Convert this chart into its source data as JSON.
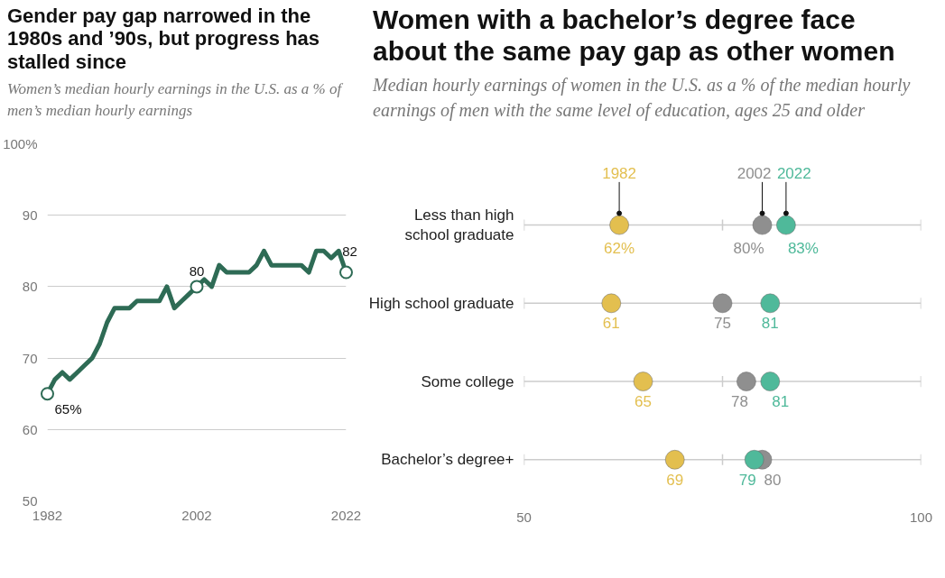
{
  "chart_data": [
    {
      "type": "line",
      "title": "Gender pay gap narrowed in the 1980s and ’90s, but progress has stalled since",
      "subtitle": "Women’s median hourly earnings in the U.S. as a % of men’s median hourly earnings",
      "x": [
        1982,
        1983,
        1984,
        1985,
        1986,
        1987,
        1988,
        1989,
        1990,
        1991,
        1992,
        1993,
        1994,
        1995,
        1996,
        1997,
        1998,
        1999,
        2000,
        2001,
        2002,
        2003,
        2004,
        2005,
        2006,
        2007,
        2008,
        2009,
        2010,
        2011,
        2012,
        2013,
        2014,
        2015,
        2016,
        2017,
        2018,
        2019,
        2020,
        2021,
        2022
      ],
      "series": [
        {
          "color": "#2e6b55",
          "values": [
            65,
            67,
            68,
            67,
            68,
            69,
            70,
            72,
            75,
            77,
            77,
            77,
            78,
            78,
            78,
            78,
            80,
            77,
            78,
            79,
            80,
            81,
            80,
            83,
            82,
            82,
            82,
            82,
            83,
            85,
            83,
            83,
            83,
            83,
            83,
            82,
            85,
            85,
            84,
            85,
            82
          ]
        }
      ],
      "xlim": [
        1982,
        2022
      ],
      "xticks": [
        1982,
        2002,
        2022
      ],
      "ylim": [
        50,
        100
      ],
      "yticks": [
        50,
        60,
        70,
        80,
        90,
        {
          "value": 100,
          "label": "100%"
        }
      ],
      "grid": "y",
      "legend": false,
      "marker": "none",
      "annotations": [
        {
          "text": "65%",
          "x": 1982,
          "y": 65
        },
        {
          "text": "80",
          "x": 2002,
          "y": 80
        },
        {
          "text": "82",
          "x": 2022,
          "y": 82
        }
      ]
    },
    {
      "type": "scatter",
      "orientation": "horizontal",
      "title": "Women with a bachelor’s degree face about the same pay gap as other women",
      "subtitle": "Median hourly earnings of women in the U.S. as a % of the median hourly earnings of men with the same level of education, ages 25 and older",
      "categories": [
        "Less than high school graduate",
        "High school graduate",
        "Some college",
        "Bachelor’s degree+"
      ],
      "series": [
        {
          "name": "1982",
          "color": "#e3bf4f",
          "values": [
            62,
            61,
            65,
            69
          ],
          "value_labels": [
            "62%",
            "61",
            "65",
            "69"
          ]
        },
        {
          "name": "2002",
          "color": "#8f8f8f",
          "values": [
            80,
            75,
            78,
            80
          ],
          "value_labels": [
            "80%",
            "75",
            "78",
            "80"
          ]
        },
        {
          "name": "2022",
          "color": "#4fb99a",
          "values": [
            83,
            81,
            81,
            79
          ],
          "value_labels": [
            "83%",
            "81",
            "81",
            "79"
          ]
        }
      ],
      "xlim": [
        50,
        100
      ],
      "xticks": [
        50,
        {
          "value": 75,
          "label": null
        },
        100
      ],
      "grid": "y",
      "legend": false,
      "marker": "circle"
    }
  ]
}
